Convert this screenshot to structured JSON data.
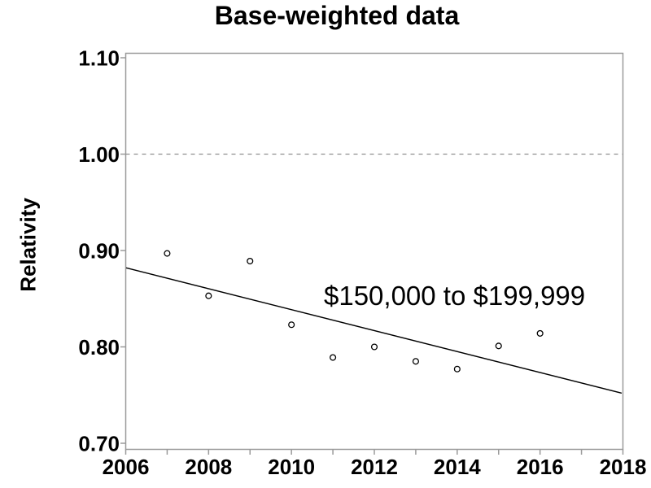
{
  "chart_data": {
    "type": "scatter",
    "title": "Base-weighted data",
    "xlabel": "",
    "ylabel": "Relativity",
    "annotation": "$150,000 to $199,999",
    "xlim": [
      2006,
      2018
    ],
    "ylim": [
      0.7,
      1.1
    ],
    "grid": "off",
    "legend": "none",
    "marker": "open-circle",
    "x_tick_values": [
      2006,
      2007,
      2008,
      2009,
      2010,
      2011,
      2012,
      2013,
      2014,
      2015,
      2016,
      2017,
      2018
    ],
    "x_tick_labels": [
      "2006",
      "",
      "2008",
      "",
      "2010",
      "",
      "2012",
      "",
      "2014",
      "",
      "2016",
      "",
      "2018"
    ],
    "y_tick_values": [
      0.7,
      0.8,
      0.9,
      1.0,
      1.1
    ],
    "y_tick_labels": [
      "0.70",
      "0.80",
      "0.90",
      "1.00",
      "1.10"
    ],
    "reference_line": {
      "y": 1.0,
      "style": "dashed",
      "color": "#8f8f8f"
    },
    "points": {
      "x": [
        2007,
        2008,
        2009,
        2010,
        2011,
        2012,
        2013,
        2014,
        2015,
        2016
      ],
      "y": [
        0.897,
        0.853,
        0.889,
        0.823,
        0.789,
        0.8,
        0.785,
        0.777,
        0.801,
        0.814
      ]
    },
    "trend_line": {
      "x": [
        2006,
        2018
      ],
      "y": [
        0.882,
        0.752
      ]
    },
    "colors": {
      "frame": "#9a9a9a",
      "marker_stroke": "#000000",
      "trend": "#000000",
      "text": "#000000",
      "background": "#ffffff"
    }
  }
}
